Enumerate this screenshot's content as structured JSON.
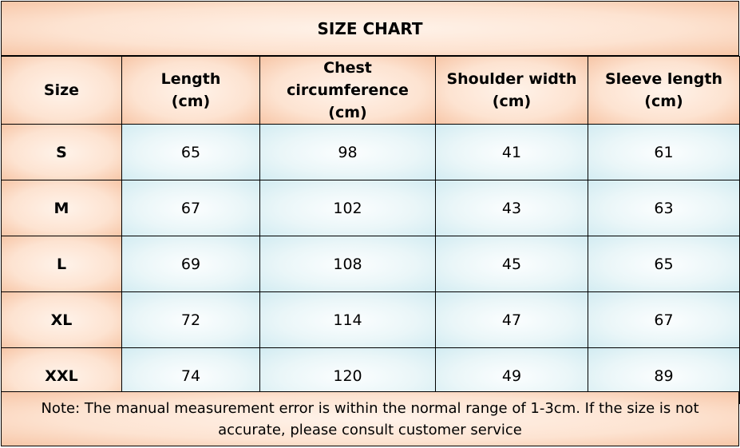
{
  "chart_data": {
    "type": "table",
    "title": "SIZE CHART",
    "columns": [
      {
        "line1": "Size",
        "line2": ""
      },
      {
        "line1": "Length",
        "line2": "(cm)"
      },
      {
        "line1": "Chest circumference",
        "line2": "(cm)"
      },
      {
        "line1": "Shoulder width",
        "line2": "(cm)"
      },
      {
        "line1": "Sleeve length",
        "line2": "(cm)"
      }
    ],
    "rows": [
      {
        "size": "S",
        "values": [
          65,
          98,
          41,
          61
        ]
      },
      {
        "size": "M",
        "values": [
          67,
          102,
          43,
          63
        ]
      },
      {
        "size": "L",
        "values": [
          69,
          108,
          45,
          65
        ]
      },
      {
        "size": "XL",
        "values": [
          72,
          114,
          47,
          67
        ]
      },
      {
        "size": "XXL",
        "values": [
          74,
          120,
          49,
          89
        ]
      }
    ],
    "note": "Note: The manual measurement error is within the normal range of 1-3cm. If the size is not accurate, please consult customer service"
  },
  "colors": {
    "header_fill": "#f7c6a7",
    "value_fill": "#d3ecf2",
    "border": "#000000"
  }
}
